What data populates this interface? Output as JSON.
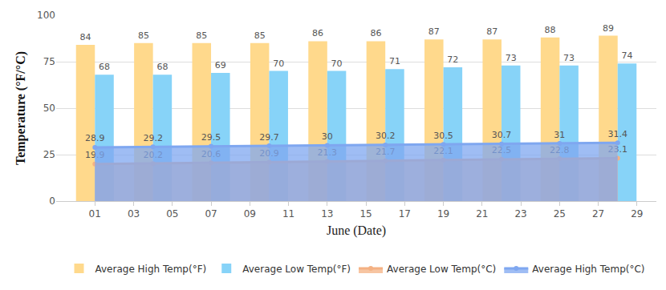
{
  "chart_data": {
    "type": "bar",
    "x_label": "June (Date)",
    "y_label": "Temperature (°F/°C)",
    "x": [
      1,
      4,
      7,
      10,
      13,
      16,
      19,
      22,
      25,
      28
    ],
    "series": [
      {
        "name": "Average High Temp(°F)",
        "type": "bar",
        "color": "#ffd98c",
        "values": [
          84,
          85,
          85,
          85,
          86,
          86,
          87,
          87,
          88,
          89
        ]
      },
      {
        "name": "Average Low Temp(°F)",
        "type": "bar",
        "color": "#87d3f8",
        "values": [
          68,
          68,
          69,
          70,
          70,
          71,
          72,
          73,
          73,
          74
        ]
      },
      {
        "name": "Average Low Temp(°C)",
        "type": "area",
        "color": "#f4b183",
        "marker": "circle",
        "values": [
          19.9,
          20.2,
          20.6,
          20.9,
          21.3,
          21.7,
          22.1,
          22.5,
          22.8,
          23.1
        ]
      },
      {
        "name": "Average High Temp(°C)",
        "type": "area",
        "color": "#7fa7f0",
        "marker": "circle",
        "values": [
          28.9,
          29.2,
          29.5,
          29.7,
          30,
          30.2,
          30.5,
          30.7,
          31,
          31.4
        ]
      }
    ],
    "xlim": [
      -1,
      30
    ],
    "xticks": [
      {
        "value": 1,
        "label": "01"
      },
      {
        "value": 3,
        "label": "03"
      },
      {
        "value": 5,
        "label": "05"
      },
      {
        "value": 7,
        "label": "07"
      },
      {
        "value": 9,
        "label": "09"
      },
      11,
      13,
      15,
      17,
      19,
      21,
      23,
      25,
      27,
      29
    ],
    "ylim": [
      0,
      100
    ],
    "yticks": [
      0,
      25,
      50,
      75,
      100
    ],
    "grid": true,
    "legend": "bottom",
    "data_labels": true
  }
}
